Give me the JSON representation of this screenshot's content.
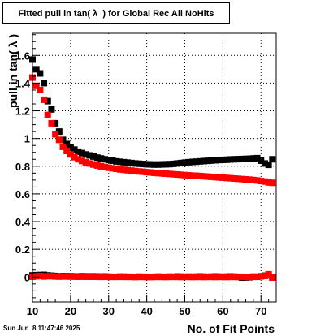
{
  "title": "Fitted pull in tan( λ  ) for Global Rec All NoHits",
  "timestamp": "Sun Jun  8 11:47:46 2025",
  "chart_data": {
    "type": "scatter",
    "xlabel": "No. of Fit Points",
    "ylabel": "pull in tan( λ  )",
    "xlim": [
      10,
      74
    ],
    "ylim": [
      -0.18,
      1.76
    ],
    "xticks": [
      10,
      20,
      30,
      40,
      50,
      60,
      70
    ],
    "yticks": [
      0,
      0.2,
      0.4,
      0.6,
      0.8,
      1,
      1.2,
      1.4,
      1.6
    ],
    "ytick_labels": [
      "0",
      "0.2",
      "0.4",
      "0.6",
      "0.8",
      "1",
      "1.2",
      "1.4",
      "1.6"
    ],
    "grid": true,
    "x": [
      10,
      11,
      12,
      13,
      14,
      15,
      16,
      17,
      18,
      19,
      20,
      21,
      22,
      23,
      24,
      25,
      26,
      27,
      28,
      29,
      30,
      31,
      32,
      33,
      34,
      35,
      36,
      37,
      38,
      39,
      40,
      41,
      42,
      43,
      44,
      45,
      46,
      47,
      48,
      49,
      50,
      51,
      52,
      53,
      54,
      55,
      56,
      57,
      58,
      59,
      60,
      61,
      62,
      63,
      64,
      65,
      66,
      67,
      68,
      69,
      70,
      71,
      72,
      73
    ],
    "series": [
      {
        "color": "#000000",
        "values": [
          1.57,
          1.5,
          1.47,
          1.4,
          1.27,
          1.21,
          1.11,
          1.05,
          0.99,
          0.96,
          0.935,
          0.92,
          0.905,
          0.895,
          0.885,
          0.878,
          0.87,
          0.862,
          0.856,
          0.85,
          0.845,
          0.84,
          0.835,
          0.832,
          0.829,
          0.826,
          0.823,
          0.82,
          0.818,
          0.816,
          0.814,
          0.813,
          0.812,
          0.812,
          0.813,
          0.814,
          0.815,
          0.817,
          0.82,
          0.823,
          0.826,
          0.829,
          0.831,
          0.833,
          0.835,
          0.837,
          0.839,
          0.841,
          0.843,
          0.845,
          0.846,
          0.847,
          0.849,
          0.85,
          0.851,
          0.852,
          0.853,
          0.854,
          0.856,
          0.858,
          0.84,
          0.82,
          0.81,
          0.85
        ]
      },
      {
        "color": "#ff0000",
        "values": [
          1.44,
          1.38,
          1.35,
          1.28,
          1.17,
          1.11,
          1.03,
          0.99,
          0.94,
          0.91,
          0.885,
          0.865,
          0.85,
          0.838,
          0.828,
          0.82,
          0.812,
          0.805,
          0.799,
          0.794,
          0.789,
          0.785,
          0.781,
          0.777,
          0.774,
          0.771,
          0.768,
          0.765,
          0.762,
          0.76,
          0.757,
          0.755,
          0.752,
          0.75,
          0.748,
          0.746,
          0.744,
          0.742,
          0.74,
          0.738,
          0.736,
          0.734,
          0.732,
          0.731,
          0.729,
          0.727,
          0.725,
          0.723,
          0.721,
          0.719,
          0.717,
          0.715,
          0.713,
          0.711,
          0.709,
          0.707,
          0.705,
          0.703,
          0.7,
          0.697,
          0.693,
          0.689,
          0.683,
          0.68
        ]
      },
      {
        "color": "#000000",
        "values": [
          0.012,
          0.014,
          0.015,
          0.016,
          0.012,
          0.01,
          0.008,
          0.005,
          0.007,
          0.006,
          0.006,
          0.005,
          0.004,
          0.006,
          0.005,
          0.004,
          0.005,
          0.004,
          0.003,
          0.004,
          0.003,
          0.002,
          0.002,
          0.003,
          0.003,
          0.002,
          0.002,
          0.001,
          0.003,
          0.002,
          0.002,
          0.001,
          0.002,
          0.003,
          0.002,
          0.002,
          0.003,
          0.002,
          0.004,
          0.003,
          0.002,
          0.003,
          0.002,
          0.003,
          0.004,
          0.003,
          0.002,
          0.003,
          0.004,
          0.003,
          0.002,
          0.003,
          0.004,
          0.003,
          0.002,
          -0.004,
          -0.003,
          -0.002,
          0.003,
          0.002,
          0.005,
          0.01,
          0.012,
          -0.003
        ]
      },
      {
        "color": "#ff0000",
        "values": [
          0.002,
          0.005,
          0.008,
          0.004,
          0.006,
          0.006,
          0.004,
          0.003,
          0.004,
          0.004,
          0.003,
          0.003,
          0.002,
          0.003,
          0.002,
          0.002,
          0.002,
          0.002,
          0.001,
          0.002,
          0.001,
          0.001,
          0.001,
          0.002,
          0.001,
          0.001,
          0.001,
          0.0,
          0.001,
          0.001,
          0.0,
          0.0,
          0.001,
          0.001,
          0.001,
          0.0,
          0.001,
          0.001,
          0.001,
          0.0,
          0.001,
          0.001,
          0.0,
          0.001,
          0.001,
          0.0,
          0.001,
          0.001,
          0.0,
          0.001,
          0.001,
          0.0,
          0.001,
          0.001,
          0.0,
          0.002,
          0.001,
          0.0,
          0.001,
          0.002,
          0.006,
          0.008,
          0.02,
          -0.004
        ]
      }
    ]
  }
}
